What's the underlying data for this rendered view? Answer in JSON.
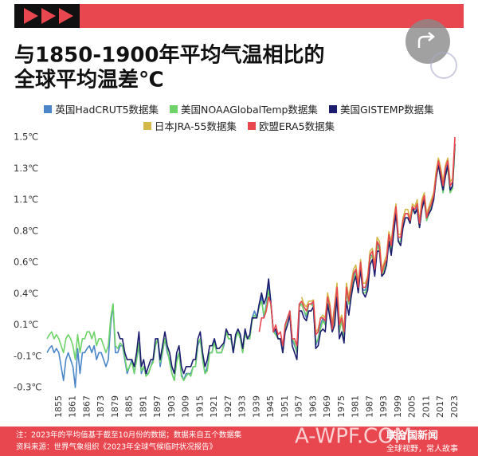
{
  "chart_data": {
    "type": "line",
    "title": [
      "与1850-1900年平均气温相比的",
      "全球平均温差℃"
    ],
    "xlim": [
      1850,
      2023
    ],
    "xticks": [
      1855,
      1861,
      1867,
      1873,
      1879,
      1885,
      1891,
      1897,
      1903,
      1909,
      1915,
      1921,
      1927,
      1933,
      1939,
      1945,
      1951,
      1957,
      1963,
      1969,
      1975,
      1981,
      1987,
      1993,
      1999,
      2005,
      2011,
      2017,
      2023
    ],
    "ylim": [
      -0.3,
      1.5
    ],
    "yticks": [
      {
        "value": 1.5,
        "label": "1.5℃"
      },
      {
        "value": 1.275,
        "label": "1.3℃"
      },
      {
        "value": 1.05,
        "label": "1.1℃"
      },
      {
        "value": 0.825,
        "label": "0.8℃"
      },
      {
        "value": 0.6,
        "label": "0.6℃"
      },
      {
        "value": 0.375,
        "label": "0.4℃"
      },
      {
        "value": 0.15,
        "label": "0.1℃"
      },
      {
        "value": -0.075,
        "label": "-0.1℃"
      },
      {
        "value": -0.3,
        "label": "-0.3℃"
      }
    ],
    "grid": false,
    "x": [
      1850,
      1851,
      1852,
      1853,
      1854,
      1855,
      1856,
      1857,
      1858,
      1859,
      1860,
      1861,
      1862,
      1863,
      1864,
      1865,
      1866,
      1867,
      1868,
      1869,
      1870,
      1871,
      1872,
      1873,
      1874,
      1875,
      1876,
      1877,
      1878,
      1879,
      1880,
      1881,
      1882,
      1883,
      1884,
      1885,
      1886,
      1887,
      1888,
      1889,
      1890,
      1891,
      1892,
      1893,
      1894,
      1895,
      1896,
      1897,
      1898,
      1899,
      1900,
      1901,
      1902,
      1903,
      1904,
      1905,
      1906,
      1907,
      1908,
      1909,
      1910,
      1911,
      1912,
      1913,
      1914,
      1915,
      1916,
      1917,
      1918,
      1919,
      1920,
      1921,
      1922,
      1923,
      1924,
      1925,
      1926,
      1927,
      1928,
      1929,
      1930,
      1931,
      1932,
      1933,
      1934,
      1935,
      1936,
      1937,
      1938,
      1939,
      1940,
      1941,
      1942,
      1943,
      1944,
      1945,
      1946,
      1947,
      1948,
      1949,
      1950,
      1951,
      1952,
      1953,
      1954,
      1955,
      1956,
      1957,
      1958,
      1959,
      1960,
      1961,
      1962,
      1963,
      1964,
      1965,
      1966,
      1967,
      1968,
      1969,
      1970,
      1971,
      1972,
      1973,
      1974,
      1975,
      1976,
      1977,
      1978,
      1979,
      1980,
      1981,
      1982,
      1983,
      1984,
      1985,
      1986,
      1987,
      1988,
      1989,
      1990,
      1991,
      1992,
      1993,
      1994,
      1995,
      1996,
      1997,
      1998,
      1999,
      2000,
      2001,
      2002,
      2003,
      2004,
      2005,
      2006,
      2007,
      2008,
      2009,
      2010,
      2011,
      2012,
      2013,
      2014,
      2015,
      2016,
      2017,
      2018,
      2019,
      2020,
      2021,
      2022,
      2023
    ],
    "series": [
      {
        "name": "英国HadCRUT5数据集",
        "color": "#4a86c8",
        "values": [
          -0.05,
          -0.02,
          0.0,
          -0.05,
          -0.02,
          -0.05,
          -0.15,
          -0.25,
          -0.1,
          -0.05,
          -0.1,
          -0.15,
          -0.3,
          -0.02,
          -0.2,
          -0.05,
          -0.05,
          -0.02,
          0.0,
          -0.05,
          0.0,
          -0.1,
          -0.05,
          -0.05,
          -0.1,
          -0.15,
          -0.1,
          0.15,
          0.3,
          -0.05,
          -0.05,
          0.0,
          0.0,
          -0.1,
          -0.2,
          -0.15,
          -0.1,
          -0.2,
          -0.1,
          0.0,
          -0.2,
          -0.15,
          -0.2,
          -0.2,
          -0.15,
          -0.1,
          0.0,
          0.05,
          -0.15,
          -0.05,
          0.05,
          -0.05,
          -0.1,
          -0.2,
          -0.25,
          -0.1,
          -0.05,
          -0.2,
          -0.25,
          -0.2,
          -0.2,
          -0.2,
          -0.15,
          -0.15,
          0.0,
          0.05,
          -0.1,
          -0.2,
          -0.15,
          -0.05,
          -0.05,
          0.05,
          -0.05,
          -0.05,
          -0.05,
          0.0,
          0.1,
          0.05,
          0.05,
          -0.05,
          0.05,
          0.1,
          0.05,
          -0.05,
          0.1,
          0.05,
          0.05,
          0.2,
          0.25,
          0.2,
          0.3,
          0.35,
          0.2,
          0.3,
          0.45,
          0.3,
          0.1,
          0.1,
          0.05,
          0.05,
          -0.05,
          0.15,
          0.2,
          0.25,
          0.05,
          0.0,
          -0.05,
          0.3,
          0.3,
          0.25,
          0.2,
          0.3,
          0.3,
          0.3,
          0.0,
          0.05,
          0.15,
          0.2,
          0.15,
          0.35,
          0.25,
          0.1,
          0.25,
          0.4,
          0.1,
          0.2,
          0.05,
          0.4,
          0.3,
          0.4,
          0.5,
          0.55,
          0.4,
          0.6,
          0.4,
          0.4,
          0.45,
          0.65,
          0.65,
          0.55,
          0.75,
          0.7,
          0.5,
          0.55,
          0.6,
          0.8,
          0.7,
          0.85,
          1.0,
          0.75,
          0.75,
          0.9,
          0.95,
          0.95,
          0.9,
          1.0,
          0.95,
          1.0,
          0.85,
          1.0,
          1.05,
          0.9,
          0.95,
          1.0,
          1.05,
          1.2,
          1.3,
          1.2,
          1.1,
          1.25,
          1.3,
          1.1,
          1.15,
          1.45
        ]
      },
      {
        "name": "美国NOAAGlobalTemp数据集",
        "color": "#6fd36a",
        "values": [
          0.05,
          0.08,
          0.1,
          0.05,
          0.08,
          0.05,
          0.0,
          -0.05,
          0.05,
          0.08,
          0.05,
          0.0,
          -0.1,
          0.08,
          -0.05,
          0.05,
          0.05,
          0.1,
          0.1,
          0.05,
          0.1,
          0.0,
          0.05,
          0.05,
          0.0,
          -0.05,
          0.0,
          0.2,
          0.3,
          0.0,
          -0.02,
          0.02,
          0.0,
          -0.08,
          -0.18,
          -0.15,
          -0.12,
          -0.2,
          -0.1,
          0.02,
          -0.18,
          -0.15,
          -0.22,
          -0.2,
          -0.15,
          -0.12,
          0.0,
          0.05,
          -0.12,
          -0.05,
          0.05,
          -0.02,
          -0.12,
          -0.2,
          -0.25,
          -0.12,
          -0.05,
          -0.22,
          -0.25,
          -0.22,
          -0.2,
          -0.22,
          -0.15,
          -0.15,
          0.02,
          0.05,
          -0.1,
          -0.2,
          -0.18,
          -0.05,
          -0.05,
          0.02,
          -0.05,
          -0.05,
          -0.05,
          0.02,
          0.1,
          0.05,
          0.05,
          -0.05,
          0.05,
          0.1,
          0.05,
          -0.05,
          0.08,
          0.05,
          0.05,
          0.18,
          0.22,
          0.2,
          0.28,
          0.32,
          0.22,
          0.28,
          0.4,
          0.28,
          0.1,
          0.08,
          0.05,
          0.05,
          -0.05,
          0.12,
          0.2,
          0.25,
          0.05,
          0.02,
          -0.05,
          0.28,
          0.3,
          0.25,
          0.22,
          0.3,
          0.3,
          0.28,
          0.02,
          0.05,
          0.12,
          0.18,
          0.15,
          0.33,
          0.25,
          0.1,
          0.22,
          0.38,
          0.1,
          0.18,
          0.05,
          0.38,
          0.3,
          0.38,
          0.48,
          0.52,
          0.4,
          0.58,
          0.38,
          0.38,
          0.42,
          0.62,
          0.65,
          0.52,
          0.72,
          0.68,
          0.5,
          0.55,
          0.6,
          0.78,
          0.68,
          0.85,
          0.98,
          0.75,
          0.75,
          0.88,
          0.92,
          0.92,
          0.88,
          0.98,
          0.95,
          0.98,
          0.85,
          0.98,
          1.05,
          0.9,
          0.95,
          1.0,
          1.05,
          1.2,
          1.3,
          1.2,
          1.1,
          1.22,
          1.28,
          1.1,
          1.13,
          1.42
        ]
      },
      {
        "name": "美国GISTEMP数据集",
        "color": "#1c1c6e",
        "values": [
          null,
          null,
          null,
          null,
          null,
          null,
          null,
          null,
          null,
          null,
          null,
          null,
          null,
          null,
          null,
          null,
          null,
          null,
          null,
          null,
          null,
          null,
          null,
          null,
          null,
          null,
          null,
          null,
          null,
          null,
          0.1,
          0.05,
          0.05,
          -0.05,
          -0.1,
          -0.1,
          -0.1,
          -0.15,
          -0.05,
          0.1,
          -0.15,
          -0.1,
          -0.2,
          -0.15,
          -0.1,
          -0.1,
          0.05,
          0.05,
          -0.1,
          0.0,
          0.1,
          0.0,
          -0.05,
          -0.15,
          -0.2,
          -0.05,
          0.0,
          -0.15,
          -0.2,
          -0.15,
          -0.15,
          -0.15,
          -0.1,
          -0.1,
          0.05,
          0.1,
          -0.05,
          -0.15,
          -0.1,
          0.0,
          0.0,
          0.05,
          -0.02,
          -0.02,
          0.0,
          0.02,
          0.12,
          0.08,
          0.08,
          -0.05,
          0.08,
          0.12,
          0.08,
          -0.02,
          0.12,
          0.05,
          0.08,
          0.2,
          0.2,
          0.2,
          0.3,
          0.38,
          0.3,
          0.35,
          0.48,
          0.3,
          0.1,
          0.12,
          0.05,
          0.05,
          -0.05,
          0.1,
          0.15,
          0.22,
          0.0,
          -0.05,
          -0.1,
          0.25,
          0.25,
          0.2,
          0.18,
          0.25,
          0.25,
          0.28,
          -0.02,
          0.0,
          0.1,
          0.12,
          0.1,
          0.3,
          0.2,
          0.1,
          0.15,
          0.35,
          0.05,
          0.1,
          0.02,
          0.32,
          0.22,
          0.35,
          0.45,
          0.5,
          0.38,
          0.55,
          0.38,
          0.35,
          0.4,
          0.58,
          0.62,
          0.5,
          0.68,
          0.68,
          0.5,
          0.52,
          0.58,
          0.75,
          0.65,
          0.8,
          0.95,
          0.75,
          0.72,
          0.85,
          0.92,
          0.92,
          0.88,
          1.0,
          0.95,
          0.98,
          0.85,
          0.98,
          1.05,
          0.92,
          0.95,
          0.98,
          1.05,
          1.2,
          1.3,
          1.2,
          1.12,
          1.22,
          1.3,
          1.12,
          1.15,
          1.45
        ]
      },
      {
        "name": "日本JRA-55数据集",
        "color": "#d4b84a",
        "values": [
          null,
          null,
          null,
          null,
          null,
          null,
          null,
          null,
          null,
          null,
          null,
          null,
          null,
          null,
          null,
          null,
          null,
          null,
          null,
          null,
          null,
          null,
          null,
          null,
          null,
          null,
          null,
          null,
          null,
          null,
          null,
          null,
          null,
          null,
          null,
          null,
          null,
          null,
          null,
          null,
          null,
          null,
          null,
          null,
          null,
          null,
          null,
          null,
          null,
          null,
          null,
          null,
          null,
          null,
          null,
          null,
          null,
          null,
          null,
          null,
          null,
          null,
          null,
          null,
          null,
          null,
          null,
          null,
          null,
          null,
          null,
          null,
          null,
          null,
          null,
          null,
          null,
          null,
          null,
          null,
          null,
          null,
          null,
          null,
          null,
          null,
          null,
          null,
          null,
          null,
          null,
          null,
          null,
          null,
          null,
          null,
          null,
          null,
          null,
          null,
          null,
          null,
          null,
          null,
          null,
          null,
          null,
          null,
          0.35,
          0.3,
          0.28,
          0.32,
          0.32,
          0.33,
          0.1,
          0.12,
          0.2,
          0.22,
          0.2,
          0.38,
          0.3,
          0.15,
          0.3,
          0.45,
          0.18,
          0.22,
          0.12,
          0.45,
          0.35,
          0.45,
          0.55,
          0.58,
          0.45,
          0.62,
          0.45,
          0.45,
          0.5,
          0.68,
          0.7,
          0.58,
          0.78,
          0.75,
          0.55,
          0.6,
          0.65,
          0.82,
          0.75,
          0.9,
          1.02,
          0.8,
          0.8,
          0.92,
          0.98,
          0.98,
          0.92,
          1.02,
          1.0,
          1.05,
          0.9,
          1.05,
          1.1,
          0.95,
          1.0,
          1.05,
          1.1,
          1.25,
          1.35,
          1.28,
          1.18,
          1.3,
          1.35,
          1.18,
          1.2,
          1.48
        ]
      },
      {
        "name": "欧盟ERA5数据集",
        "color": "#e8474f",
        "values": [
          null,
          null,
          null,
          null,
          null,
          null,
          null,
          null,
          null,
          null,
          null,
          null,
          null,
          null,
          null,
          null,
          null,
          null,
          null,
          null,
          null,
          null,
          null,
          null,
          null,
          null,
          null,
          null,
          null,
          null,
          null,
          null,
          null,
          null,
          null,
          null,
          null,
          null,
          null,
          null,
          null,
          null,
          null,
          null,
          null,
          null,
          null,
          null,
          null,
          null,
          null,
          null,
          null,
          null,
          null,
          null,
          null,
          null,
          null,
          null,
          null,
          null,
          null,
          null,
          null,
          null,
          null,
          null,
          null,
          null,
          null,
          null,
          null,
          null,
          null,
          null,
          null,
          null,
          null,
          null,
          null,
          null,
          null,
          null,
          null,
          null,
          null,
          null,
          null,
          null,
          0.1,
          0.2,
          0.2,
          0.25,
          0.35,
          0.3,
          0.1,
          0.15,
          0.08,
          0.1,
          0.0,
          0.15,
          0.2,
          0.25,
          0.05,
          0.05,
          0.0,
          0.3,
          0.32,
          0.28,
          0.25,
          0.3,
          0.3,
          0.32,
          0.08,
          0.1,
          0.2,
          0.2,
          0.18,
          0.35,
          0.28,
          0.12,
          0.28,
          0.42,
          0.15,
          0.2,
          0.1,
          0.42,
          0.32,
          0.42,
          0.52,
          0.55,
          0.42,
          0.6,
          0.42,
          0.42,
          0.48,
          0.65,
          0.68,
          0.55,
          0.75,
          0.72,
          0.52,
          0.58,
          0.62,
          0.8,
          0.72,
          0.88,
          1.0,
          0.78,
          0.78,
          0.9,
          0.95,
          0.95,
          0.9,
          1.0,
          0.98,
          1.02,
          0.88,
          1.02,
          1.08,
          0.92,
          0.98,
          1.02,
          1.08,
          1.22,
          1.33,
          1.25,
          1.15,
          1.28,
          1.33,
          1.15,
          1.18,
          1.5
        ]
      }
    ]
  },
  "footer": {
    "note": "注：2023年的平均值基于截至10月份的数据；数据来自五个数据集",
    "source": "资料来源：世界气象组织《2023年全球气候临时状况报告》",
    "brand": "联合国新闻",
    "slogan": "全球视野，常人故事",
    "watermark": "A-WPF.COM"
  }
}
